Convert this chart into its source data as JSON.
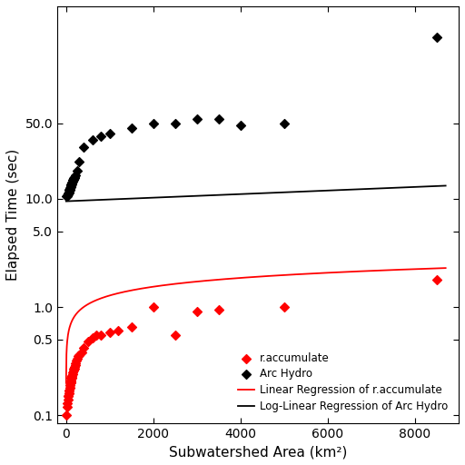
{
  "title": "",
  "xlabel": "Subwatershed Area (km²)",
  "ylabel": "Elapsed Time (sec)",
  "red_points_x": [
    10,
    20,
    30,
    40,
    50,
    55,
    60,
    65,
    70,
    75,
    80,
    85,
    90,
    95,
    100,
    105,
    110,
    115,
    120,
    125,
    130,
    135,
    140,
    150,
    160,
    170,
    180,
    190,
    200,
    210,
    220,
    240,
    260,
    280,
    300,
    350,
    400,
    500,
    600,
    700,
    800,
    1000,
    1200,
    1500,
    2000,
    2500,
    3000,
    3500,
    5000,
    8500
  ],
  "red_points_y": [
    0.1,
    0.12,
    0.13,
    0.14,
    0.15,
    0.15,
    0.16,
    0.16,
    0.17,
    0.17,
    0.18,
    0.18,
    0.19,
    0.19,
    0.2,
    0.2,
    0.2,
    0.21,
    0.22,
    0.22,
    0.22,
    0.23,
    0.23,
    0.24,
    0.25,
    0.26,
    0.27,
    0.27,
    0.28,
    0.29,
    0.3,
    0.32,
    0.33,
    0.35,
    0.36,
    0.38,
    0.42,
    0.48,
    0.52,
    0.55,
    0.55,
    0.58,
    0.6,
    0.65,
    1.0,
    0.55,
    0.9,
    0.95,
    1.0,
    1.8
  ],
  "black_points_x": [
    10,
    20,
    30,
    40,
    50,
    55,
    60,
    65,
    70,
    75,
    80,
    85,
    90,
    95,
    100,
    105,
    110,
    115,
    120,
    125,
    130,
    135,
    140,
    150,
    160,
    170,
    180,
    190,
    200,
    220,
    250,
    300,
    400,
    600,
    800,
    1000,
    1500,
    2000,
    2500,
    3000,
    3500,
    4000,
    5000,
    8500
  ],
  "black_points_y": [
    10.5,
    10.5,
    10.8,
    11.0,
    11.2,
    11.3,
    11.5,
    11.5,
    12.0,
    12.0,
    12.0,
    12.2,
    12.5,
    12.5,
    12.8,
    13.0,
    13.0,
    13.2,
    13.5,
    13.5,
    13.8,
    14.0,
    14.0,
    14.5,
    15.0,
    15.5,
    15.0,
    15.5,
    16.0,
    16.5,
    18.0,
    22.0,
    30.0,
    35.0,
    38.0,
    40.0,
    45.0,
    50.0,
    50.0,
    55.0,
    55.0,
    48.0,
    50.0,
    310.0
  ],
  "red_line_a": -1.62,
  "red_line_b": 0.27,
  "black_line_a": 2.25,
  "black_line_b": 3.8e-05,
  "xlim": [
    -200,
    9000
  ],
  "ylim": [
    0.085,
    600
  ],
  "ytick_vals": [
    0.1,
    0.5,
    1.0,
    5.0,
    10.0,
    50.0
  ],
  "ytick_labels": [
    "0.1",
    "0.5",
    "1.0",
    "5.0",
    "10.0",
    "50.0"
  ],
  "xticks": [
    0,
    2000,
    4000,
    6000,
    8000
  ],
  "red_color": "#FF0000",
  "black_color": "#000000",
  "legend_labels": [
    "r.accumulate",
    "Arc Hydro",
    "Linear Regression of r.accumulate",
    "Log-Linear Regression of Arc Hydro"
  ],
  "marker_size": 25,
  "line_width": 1.3,
  "fig_bg": "#FFFFFF"
}
